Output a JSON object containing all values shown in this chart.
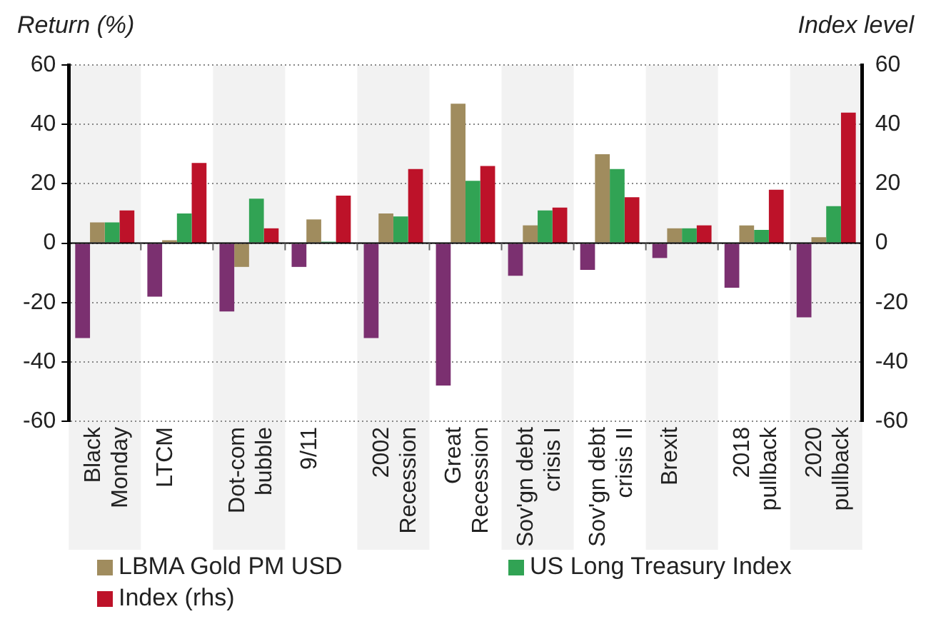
{
  "chart_data": {
    "type": "bar",
    "ylabel": "Return (%)",
    "y2label": "Index level",
    "categories": [
      "Black Monday",
      "LTCM",
      "Dot-com bubble",
      "9/11",
      "2002 Recession",
      "Great Recession",
      "Sov'gn debt crisis I",
      "Sov'gn debt crisis II",
      "Brexit",
      "2018 pullback",
      "2020 pullback"
    ],
    "series": [
      {
        "color": "#7b3070",
        "values": [
          -32,
          -18,
          -23,
          -8,
          -32,
          -48,
          -11,
          -9,
          -5,
          -15,
          -25
        ]
      },
      {
        "name": "LBMA Gold PM USD",
        "color": "#a08c5e",
        "values": [
          7,
          1,
          -8,
          8,
          10,
          47,
          6,
          30,
          5,
          6,
          2
        ]
      },
      {
        "name": "US Long Treasury Index",
        "color": "#31a354",
        "values": [
          7,
          10,
          15,
          0.5,
          9,
          21,
          11,
          25,
          5,
          4.5,
          12.5
        ]
      },
      {
        "name": "Index (rhs)",
        "color": "#bd1229",
        "axis": "y2",
        "values": [
          11,
          27,
          5,
          16,
          25,
          26,
          12,
          15.5,
          6,
          18,
          44
        ]
      }
    ],
    "ylim": [
      -60,
      60
    ],
    "yticks": [
      -60,
      -40,
      -20,
      0,
      20,
      40,
      60
    ],
    "y2lim": [
      -60,
      60
    ],
    "y2ticks": [
      -60,
      -40,
      -20,
      0,
      20,
      40,
      60
    ],
    "grid": "y",
    "legend": "bottom",
    "bands": [
      {
        "axis": "x",
        "from": "Black Monday",
        "to": "Black Monday",
        "color": "#f2f2f2"
      },
      {
        "axis": "x",
        "from": "Dot-com bubble",
        "to": "Dot-com bubble",
        "color": "#f2f2f2"
      },
      {
        "axis": "x",
        "from": "2002 Recession",
        "to": "2002 Recession",
        "color": "#f2f2f2"
      },
      {
        "axis": "x",
        "from": "Sov'gn debt crisis I",
        "to": "Sov'gn debt crisis I",
        "color": "#f2f2f2"
      },
      {
        "axis": "x",
        "from": "Brexit",
        "to": "Brexit",
        "color": "#f2f2f2"
      },
      {
        "axis": "x",
        "from": "2020 pullback",
        "to": "2020 pullback",
        "color": "#f2f2f2"
      }
    ]
  }
}
